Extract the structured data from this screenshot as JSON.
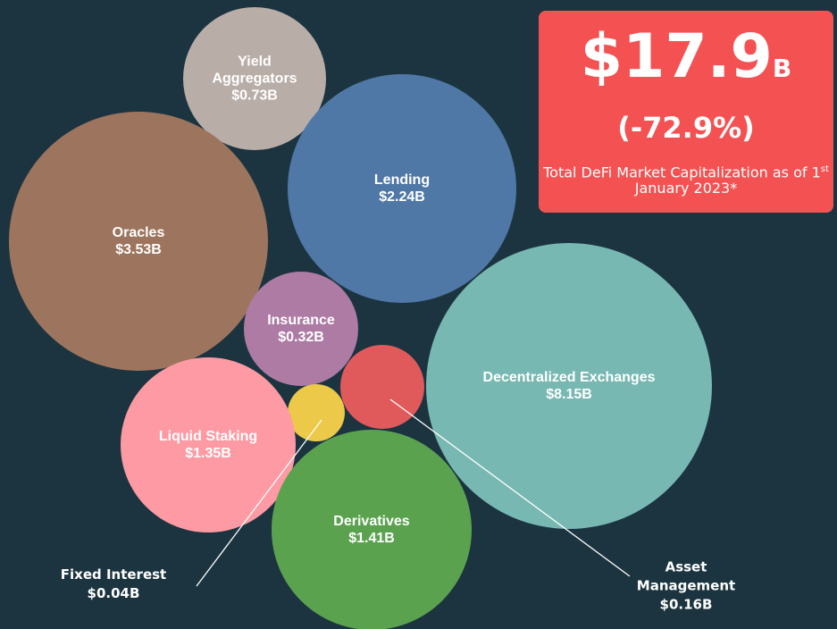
{
  "chart_data": {
    "type": "bubble",
    "categories": [
      "Yield Aggregators",
      "Lending",
      "Oracles",
      "Insurance",
      "Decentralized Exchanges",
      "Asset Management",
      "Fixed Interest",
      "Liquid Staking",
      "Derivatives"
    ],
    "values": [
      0.73,
      2.24,
      3.53,
      0.32,
      8.15,
      0.16,
      0.04,
      1.35,
      1.41
    ],
    "value_labels": [
      "$0.73B",
      "$2.24B",
      "$3.53B",
      "$0.32B",
      "$8.15B",
      "$0.16B",
      "$0.04B",
      "$1.35B",
      "$1.41B"
    ],
    "colors": [
      "#b9ada7",
      "#4f78a7",
      "#9d745d",
      "#ad7ba4",
      "#78b8b2",
      "#e05a5b",
      "#edc94a",
      "#fd9aa3",
      "#5ba24f"
    ]
  },
  "callout": {
    "headline": "$17.9",
    "headline_unit": "B",
    "change": "(-72.9%)",
    "caption_start": "Total DeFi Market Capitalization as of 1",
    "caption_sup": "st",
    "caption_end": " January 2023*"
  }
}
